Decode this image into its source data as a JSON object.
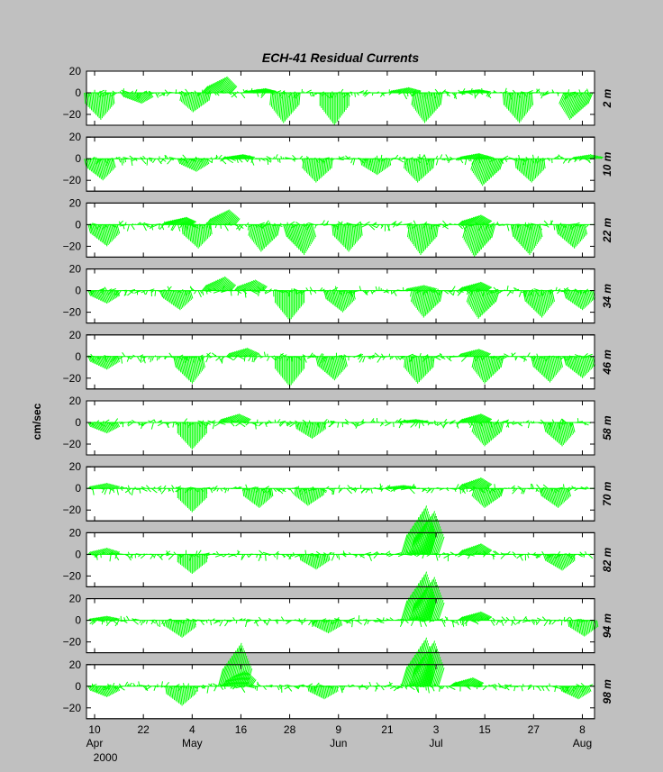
{
  "chart_data": {
    "type": "stick-plot",
    "title": "ECH-41    Residual Currents",
    "ylabel": "cm/sec",
    "ylim": [
      -30,
      20
    ],
    "yticks": [
      20,
      0,
      -20
    ],
    "stick_color": "#00ff00",
    "x_start_date": "2000-04-08",
    "x_end_date": "2000-08-11",
    "x_ticks": [
      {
        "date": "2000-04-10",
        "day": "10",
        "month": "Apr"
      },
      {
        "date": "2000-04-22",
        "day": "22",
        "month": ""
      },
      {
        "date": "2000-05-04",
        "day": "4",
        "month": "May"
      },
      {
        "date": "2000-05-16",
        "day": "16",
        "month": ""
      },
      {
        "date": "2000-05-28",
        "day": "28",
        "month": ""
      },
      {
        "date": "2000-06-09",
        "day": "9",
        "month": "Jun"
      },
      {
        "date": "2000-06-21",
        "day": "21",
        "month": ""
      },
      {
        "date": "2000-07-03",
        "day": "3",
        "month": "Jul"
      },
      {
        "date": "2000-07-15",
        "day": "15",
        "month": ""
      },
      {
        "date": "2000-07-27",
        "day": "27",
        "month": ""
      },
      {
        "date": "2000-08-08",
        "day": "8",
        "month": "Aug"
      }
    ],
    "year_label": "2000",
    "panels": [
      {
        "depth": "2 m",
        "events": [
          {
            "date": "2000-04-11",
            "u": 2,
            "v": -25
          },
          {
            "date": "2000-04-20",
            "u": 6,
            "v": -10
          },
          {
            "date": "2000-05-05",
            "u": -3,
            "v": -18
          },
          {
            "date": "2000-05-10",
            "u": 10,
            "v": 15
          },
          {
            "date": "2000-05-20",
            "u": 8,
            "v": 4
          },
          {
            "date": "2000-05-27",
            "u": -2,
            "v": -28
          },
          {
            "date": "2000-06-08",
            "u": 0,
            "v": -30
          },
          {
            "date": "2000-06-25",
            "u": 5,
            "v": 5
          },
          {
            "date": "2000-07-01",
            "u": -3,
            "v": -28
          },
          {
            "date": "2000-07-12",
            "u": 6,
            "v": 3
          },
          {
            "date": "2000-07-23",
            "u": 2,
            "v": -28
          },
          {
            "date": "2000-08-07",
            "u": -8,
            "v": -25
          }
        ]
      },
      {
        "depth": "10 m",
        "events": [
          {
            "date": "2000-04-11",
            "u": 4,
            "v": -20
          },
          {
            "date": "2000-05-04",
            "u": 4,
            "v": -12
          },
          {
            "date": "2000-05-15",
            "u": 6,
            "v": 4
          },
          {
            "date": "2000-06-04",
            "u": -2,
            "v": -22
          },
          {
            "date": "2000-06-18",
            "u": 2,
            "v": -15
          },
          {
            "date": "2000-06-29",
            "u": -2,
            "v": -22
          },
          {
            "date": "2000-07-12",
            "u": 6,
            "v": 5
          },
          {
            "date": "2000-07-16",
            "u": -6,
            "v": -25
          },
          {
            "date": "2000-07-26",
            "u": 2,
            "v": -22
          },
          {
            "date": "2000-08-09",
            "u": 4,
            "v": 4
          }
        ]
      },
      {
        "depth": "22 m",
        "events": [
          {
            "date": "2000-04-12",
            "u": 4,
            "v": -20
          },
          {
            "date": "2000-04-30",
            "u": 10,
            "v": 7
          },
          {
            "date": "2000-05-05",
            "u": 2,
            "v": -22
          },
          {
            "date": "2000-05-11",
            "u": 8,
            "v": 14
          },
          {
            "date": "2000-05-22",
            "u": -4,
            "v": -25
          },
          {
            "date": "2000-05-30",
            "u": 6,
            "v": -28
          },
          {
            "date": "2000-06-11",
            "u": 2,
            "v": -25
          },
          {
            "date": "2000-06-30",
            "u": -3,
            "v": -28
          },
          {
            "date": "2000-07-12",
            "u": 8,
            "v": 9
          },
          {
            "date": "2000-07-14",
            "u": -6,
            "v": -30
          },
          {
            "date": "2000-07-25",
            "u": 4,
            "v": -28
          },
          {
            "date": "2000-08-05",
            "u": 4,
            "v": -22
          }
        ]
      },
      {
        "depth": "34 m",
        "events": [
          {
            "date": "2000-04-12",
            "u": 4,
            "v": -12
          },
          {
            "date": "2000-04-30",
            "u": 4,
            "v": -18
          },
          {
            "date": "2000-05-10",
            "u": 8,
            "v": 13
          },
          {
            "date": "2000-05-18",
            "u": 6,
            "v": 10
          },
          {
            "date": "2000-05-28",
            "u": 0,
            "v": -28
          },
          {
            "date": "2000-06-09",
            "u": 4,
            "v": -20
          },
          {
            "date": "2000-06-29",
            "u": 4,
            "v": 5
          },
          {
            "date": "2000-07-01",
            "u": -4,
            "v": -25
          },
          {
            "date": "2000-07-12",
            "u": 8,
            "v": 8
          },
          {
            "date": "2000-07-15",
            "u": -6,
            "v": -26
          },
          {
            "date": "2000-07-28",
            "u": 4,
            "v": -25
          },
          {
            "date": "2000-08-07",
            "u": 4,
            "v": -18
          }
        ]
      },
      {
        "depth": "46 m",
        "events": [
          {
            "date": "2000-04-12",
            "u": 4,
            "v": -12
          },
          {
            "date": "2000-05-03",
            "u": 4,
            "v": -25
          },
          {
            "date": "2000-05-16",
            "u": 6,
            "v": 8
          },
          {
            "date": "2000-05-28",
            "u": 0,
            "v": -28
          },
          {
            "date": "2000-06-07",
            "u": 4,
            "v": -22
          },
          {
            "date": "2000-06-29",
            "u": -2,
            "v": -25
          },
          {
            "date": "2000-07-12",
            "u": 6,
            "v": 7
          },
          {
            "date": "2000-07-16",
            "u": -4,
            "v": -25
          },
          {
            "date": "2000-07-30",
            "u": 4,
            "v": -24
          },
          {
            "date": "2000-08-07",
            "u": 4,
            "v": -20
          }
        ]
      },
      {
        "depth": "58 m",
        "events": [
          {
            "date": "2000-04-12",
            "u": 4,
            "v": -10
          },
          {
            "date": "2000-05-04",
            "u": 0,
            "v": -25
          },
          {
            "date": "2000-05-14",
            "u": 6,
            "v": 8
          },
          {
            "date": "2000-06-02",
            "u": 2,
            "v": -15
          },
          {
            "date": "2000-06-27",
            "u": 4,
            "v": 3
          },
          {
            "date": "2000-07-12",
            "u": 8,
            "v": 8
          },
          {
            "date": "2000-07-16",
            "u": -4,
            "v": -22
          },
          {
            "date": "2000-08-02",
            "u": 4,
            "v": -22
          }
        ]
      },
      {
        "depth": "70 m",
        "events": [
          {
            "date": "2000-04-12",
            "u": 4,
            "v": 5
          },
          {
            "date": "2000-05-04",
            "u": 0,
            "v": -22
          },
          {
            "date": "2000-05-20",
            "u": 2,
            "v": -18
          },
          {
            "date": "2000-06-02",
            "u": -2,
            "v": -16
          },
          {
            "date": "2000-06-24",
            "u": 4,
            "v": 3
          },
          {
            "date": "2000-07-12",
            "u": 8,
            "v": 10
          },
          {
            "date": "2000-07-16",
            "u": -4,
            "v": -18
          },
          {
            "date": "2000-08-01",
            "u": 4,
            "v": -18
          }
        ]
      },
      {
        "depth": "82 m",
        "events": [
          {
            "date": "2000-04-12",
            "u": 4,
            "v": 6
          },
          {
            "date": "2000-05-04",
            "u": 0,
            "v": -18
          },
          {
            "date": "2000-06-03",
            "u": 2,
            "v": -14
          },
          {
            "date": "2000-06-28",
            "u": 10,
            "v": 45
          },
          {
            "date": "2000-06-30",
            "u": 10,
            "v": 40
          },
          {
            "date": "2000-07-12",
            "u": 8,
            "v": 10
          },
          {
            "date": "2000-08-02",
            "u": 4,
            "v": -15
          }
        ]
      },
      {
        "depth": "94 m",
        "events": [
          {
            "date": "2000-04-12",
            "u": 4,
            "v": 4
          },
          {
            "date": "2000-05-01",
            "u": 2,
            "v": -16
          },
          {
            "date": "2000-06-06",
            "u": 2,
            "v": -12
          },
          {
            "date": "2000-06-28",
            "u": 10,
            "v": 45
          },
          {
            "date": "2000-06-30",
            "u": 10,
            "v": 40
          },
          {
            "date": "2000-07-12",
            "u": 8,
            "v": 8
          },
          {
            "date": "2000-08-08",
            "u": 2,
            "v": -15
          }
        ]
      },
      {
        "depth": "98 m",
        "events": [
          {
            "date": "2000-04-12",
            "u": 4,
            "v": -10
          },
          {
            "date": "2000-05-01",
            "u": 2,
            "v": -18
          },
          {
            "date": "2000-05-14",
            "u": 8,
            "v": 40
          },
          {
            "date": "2000-05-15",
            "u": 8,
            "v": 15
          },
          {
            "date": "2000-06-05",
            "u": 2,
            "v": -12
          },
          {
            "date": "2000-06-28",
            "u": 10,
            "v": 45
          },
          {
            "date": "2000-06-30",
            "u": 10,
            "v": 42
          },
          {
            "date": "2000-07-10",
            "u": 8,
            "v": 8
          },
          {
            "date": "2000-08-06",
            "u": 4,
            "v": -12
          }
        ]
      }
    ]
  }
}
